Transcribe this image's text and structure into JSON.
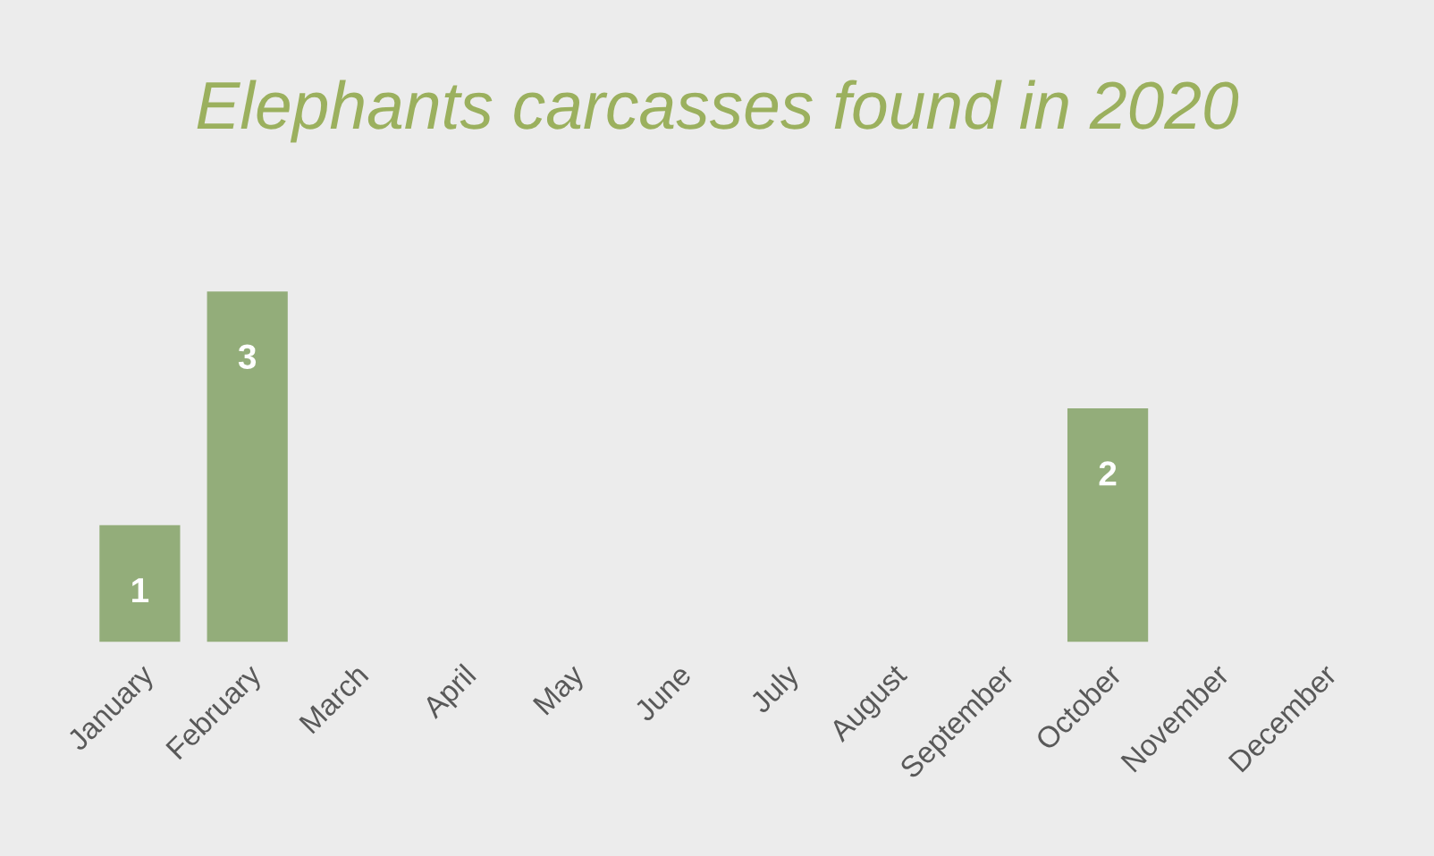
{
  "chart_data": {
    "type": "bar",
    "title": "Elephants carcasses found in 2020",
    "categories": [
      "January",
      "February",
      "March",
      "April",
      "May",
      "June",
      "July",
      "August",
      "September",
      "October",
      "November",
      "December"
    ],
    "values": [
      1,
      3,
      0,
      0,
      0,
      0,
      0,
      0,
      0,
      2,
      0,
      0
    ],
    "value_labels": [
      "1",
      "3",
      null,
      null,
      null,
      null,
      null,
      null,
      null,
      "2",
      null,
      null
    ],
    "color": "#93ad7a",
    "tick_labels": "x",
    "grid": false,
    "legend": false
  }
}
